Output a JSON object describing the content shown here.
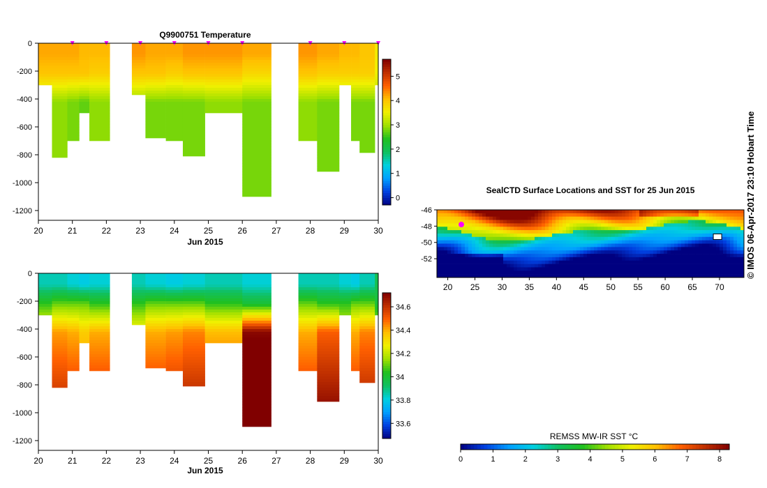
{
  "title": "Q9900751  Temperature",
  "x_axis": {
    "ticks": [
      "20",
      "21",
      "22",
      "23",
      "24",
      "25",
      "26",
      "27",
      "28",
      "29",
      "30"
    ],
    "label": "Jun 2015"
  },
  "y_axis": {
    "ticks": [
      "0",
      "-200",
      "-400",
      "-600",
      "-800",
      "-1000",
      "-1200"
    ]
  },
  "temperature_colorbar": {
    "ticks": [
      "0",
      "1",
      "2",
      "3",
      "4",
      "5"
    ],
    "range": [
      -0.3,
      5.7
    ]
  },
  "salinity_colorbar": {
    "ticks": [
      "33.6",
      "33.8",
      "34",
      "34.2",
      "34.4",
      "34.6"
    ],
    "range": [
      33.47,
      34.72
    ]
  },
  "map": {
    "title": "SealCTD Surface Locations and SST for 25 Jun 2015",
    "lat_ticks": [
      "-46",
      "-48",
      "-50",
      "-52"
    ],
    "lon_ticks": [
      "20",
      "25",
      "30",
      "35",
      "40",
      "45",
      "50",
      "55",
      "60",
      "65",
      "70"
    ],
    "lat_range": [
      -54.3,
      -46
    ],
    "lon_range": [
      18,
      74.5
    ],
    "colorbar_label": "REMSS MW-IR SST °C",
    "colorbar_ticks": [
      "0",
      "1",
      "2",
      "3",
      "4",
      "5",
      "6",
      "7",
      "8"
    ],
    "colorbar_range": [
      0,
      8.3
    ]
  },
  "credit": "©  IMOS 06-Apr-2017 23:10 Hobart Time",
  "colors": {
    "colormap": [
      "#000080",
      "#0040e0",
      "#00a0ff",
      "#00d0e0",
      "#10c060",
      "#20c020",
      "#a0e000",
      "#f0f000",
      "#ffc000",
      "#ff6000",
      "#c03000",
      "#800000"
    ],
    "marker": "#ff00ff"
  },
  "chart_data": [
    {
      "type": "heatmap",
      "variable": "temperature",
      "x_unit": "day of Jun 2015",
      "y_unit": "depth",
      "ylim": [
        -1270,
        0
      ],
      "xlim": [
        20,
        30
      ],
      "profiles": [
        {
          "x0": 20.0,
          "x1": 20.4,
          "bottom": -300,
          "surface": 4.2,
          "upper": 4.0,
          "deep": 3.0
        },
        {
          "x0": 20.4,
          "x1": 20.85,
          "bottom": -820,
          "surface": 4.2,
          "upper": 4.0,
          "deep": 2.9
        },
        {
          "x0": 20.85,
          "x1": 21.2,
          "bottom": -700,
          "surface": 4.2,
          "upper": 4.0,
          "deep": 2.8
        },
        {
          "x0": 21.2,
          "x1": 21.5,
          "bottom": -500,
          "surface": 4.1,
          "upper": 4.0,
          "deep": 2.7
        },
        {
          "x0": 21.5,
          "x1": 22.1,
          "bottom": -700,
          "surface": 4.1,
          "upper": 3.9,
          "deep": 2.9
        },
        {
          "x0": 22.75,
          "x1": 23.15,
          "bottom": -370,
          "surface": 4.3,
          "upper": 4.0,
          "deep": 2.9
        },
        {
          "x0": 23.15,
          "x1": 23.75,
          "bottom": -680,
          "surface": 4.2,
          "upper": 4.0,
          "deep": 2.8
        },
        {
          "x0": 23.75,
          "x1": 24.25,
          "bottom": -700,
          "surface": 4.2,
          "upper": 3.9,
          "deep": 2.8
        },
        {
          "x0": 24.25,
          "x1": 24.9,
          "bottom": -810,
          "surface": 4.3,
          "upper": 4.0,
          "deep": 2.8
        },
        {
          "x0": 24.9,
          "x1": 26.0,
          "bottom": -500,
          "surface": 4.3,
          "upper": 4.0,
          "deep": 2.9
        },
        {
          "x0": 26.0,
          "x1": 26.85,
          "bottom": -1100,
          "surface": 4.2,
          "upper": 3.8,
          "deep": 2.8
        },
        {
          "x0": 27.65,
          "x1": 28.2,
          "bottom": -700,
          "surface": 4.3,
          "upper": 4.0,
          "deep": 2.9
        },
        {
          "x0": 28.2,
          "x1": 28.85,
          "bottom": -920,
          "surface": 4.2,
          "upper": 3.9,
          "deep": 2.8
        },
        {
          "x0": 28.85,
          "x1": 29.2,
          "bottom": -300,
          "surface": 4.1,
          "upper": 3.9,
          "deep": 2.9
        },
        {
          "x0": 29.2,
          "x1": 29.45,
          "bottom": -700,
          "surface": 4.1,
          "upper": 3.9,
          "deep": 2.8
        },
        {
          "x0": 29.45,
          "x1": 29.9,
          "bottom": -785,
          "surface": 4.0,
          "upper": 3.9,
          "deep": 2.8
        },
        {
          "x0": 29.9,
          "x1": 30.05,
          "bottom": -300,
          "surface": 3.6,
          "upper": 3.5,
          "deep": 3.1
        }
      ],
      "surface_markers": [
        21.0,
        22.0,
        23.0,
        24.0,
        25.0,
        26.0,
        28.0,
        29.0,
        30.0
      ]
    },
    {
      "type": "heatmap",
      "variable": "salinity",
      "x_unit": "day of Jun 2015",
      "y_unit": "depth",
      "ylim": [
        -1270,
        0
      ],
      "xlim": [
        20,
        30
      ],
      "profiles": [
        {
          "x0": 20.0,
          "x1": 20.4,
          "bottom": -300,
          "surface": 33.85,
          "upper": 34.05,
          "deep": 34.3
        },
        {
          "x0": 20.4,
          "x1": 20.85,
          "bottom": -820,
          "surface": 33.85,
          "upper": 34.1,
          "deep": 34.42
        },
        {
          "x0": 20.85,
          "x1": 21.2,
          "bottom": -700,
          "surface": 33.82,
          "upper": 34.1,
          "deep": 34.4
        },
        {
          "x0": 21.2,
          "x1": 21.5,
          "bottom": -500,
          "surface": 33.8,
          "upper": 34.1,
          "deep": 34.35
        },
        {
          "x0": 21.5,
          "x1": 22.1,
          "bottom": -700,
          "surface": 33.82,
          "upper": 34.05,
          "deep": 34.4
        },
        {
          "x0": 22.75,
          "x1": 23.15,
          "bottom": -370,
          "surface": 33.85,
          "upper": 34.05,
          "deep": 34.3
        },
        {
          "x0": 23.15,
          "x1": 23.75,
          "bottom": -680,
          "surface": 33.82,
          "upper": 34.1,
          "deep": 34.4
        },
        {
          "x0": 23.75,
          "x1": 24.25,
          "bottom": -700,
          "surface": 33.8,
          "upper": 34.1,
          "deep": 34.42
        },
        {
          "x0": 24.25,
          "x1": 24.9,
          "bottom": -810,
          "surface": 33.82,
          "upper": 34.1,
          "deep": 34.45
        },
        {
          "x0": 24.9,
          "x1": 26.0,
          "bottom": -500,
          "surface": 33.85,
          "upper": 34.05,
          "deep": 34.38
        },
        {
          "x0": 26.0,
          "x1": 26.85,
          "bottom": -1100,
          "surface": 33.82,
          "upper": 34.0,
          "deep": 34.7
        },
        {
          "x0": 27.65,
          "x1": 28.2,
          "bottom": -700,
          "surface": 33.85,
          "upper": 34.1,
          "deep": 34.4
        },
        {
          "x0": 28.2,
          "x1": 28.85,
          "bottom": -920,
          "surface": 33.85,
          "upper": 34.05,
          "deep": 34.5
        },
        {
          "x0": 28.85,
          "x1": 29.2,
          "bottom": -300,
          "surface": 33.82,
          "upper": 34.05,
          "deep": 34.25
        },
        {
          "x0": 29.2,
          "x1": 29.45,
          "bottom": -700,
          "surface": 33.8,
          "upper": 34.1,
          "deep": 34.4
        },
        {
          "x0": 29.45,
          "x1": 29.9,
          "bottom": -785,
          "surface": 33.85,
          "upper": 34.1,
          "deep": 34.45
        },
        {
          "x0": 29.9,
          "x1": 30.05,
          "bottom": -300,
          "surface": 33.95,
          "upper": 34.0,
          "deep": 34.2
        }
      ]
    },
    {
      "type": "heatmap",
      "variable": "sst_map",
      "x_unit": "longitude",
      "y_unit": "latitude",
      "xlim": [
        18,
        74.5
      ],
      "ylim": [
        -54.3,
        -46
      ],
      "seal_locations": [
        [
          22.5,
          -47.8
        ],
        [
          69.5,
          -49.3
        ]
      ]
    }
  ]
}
